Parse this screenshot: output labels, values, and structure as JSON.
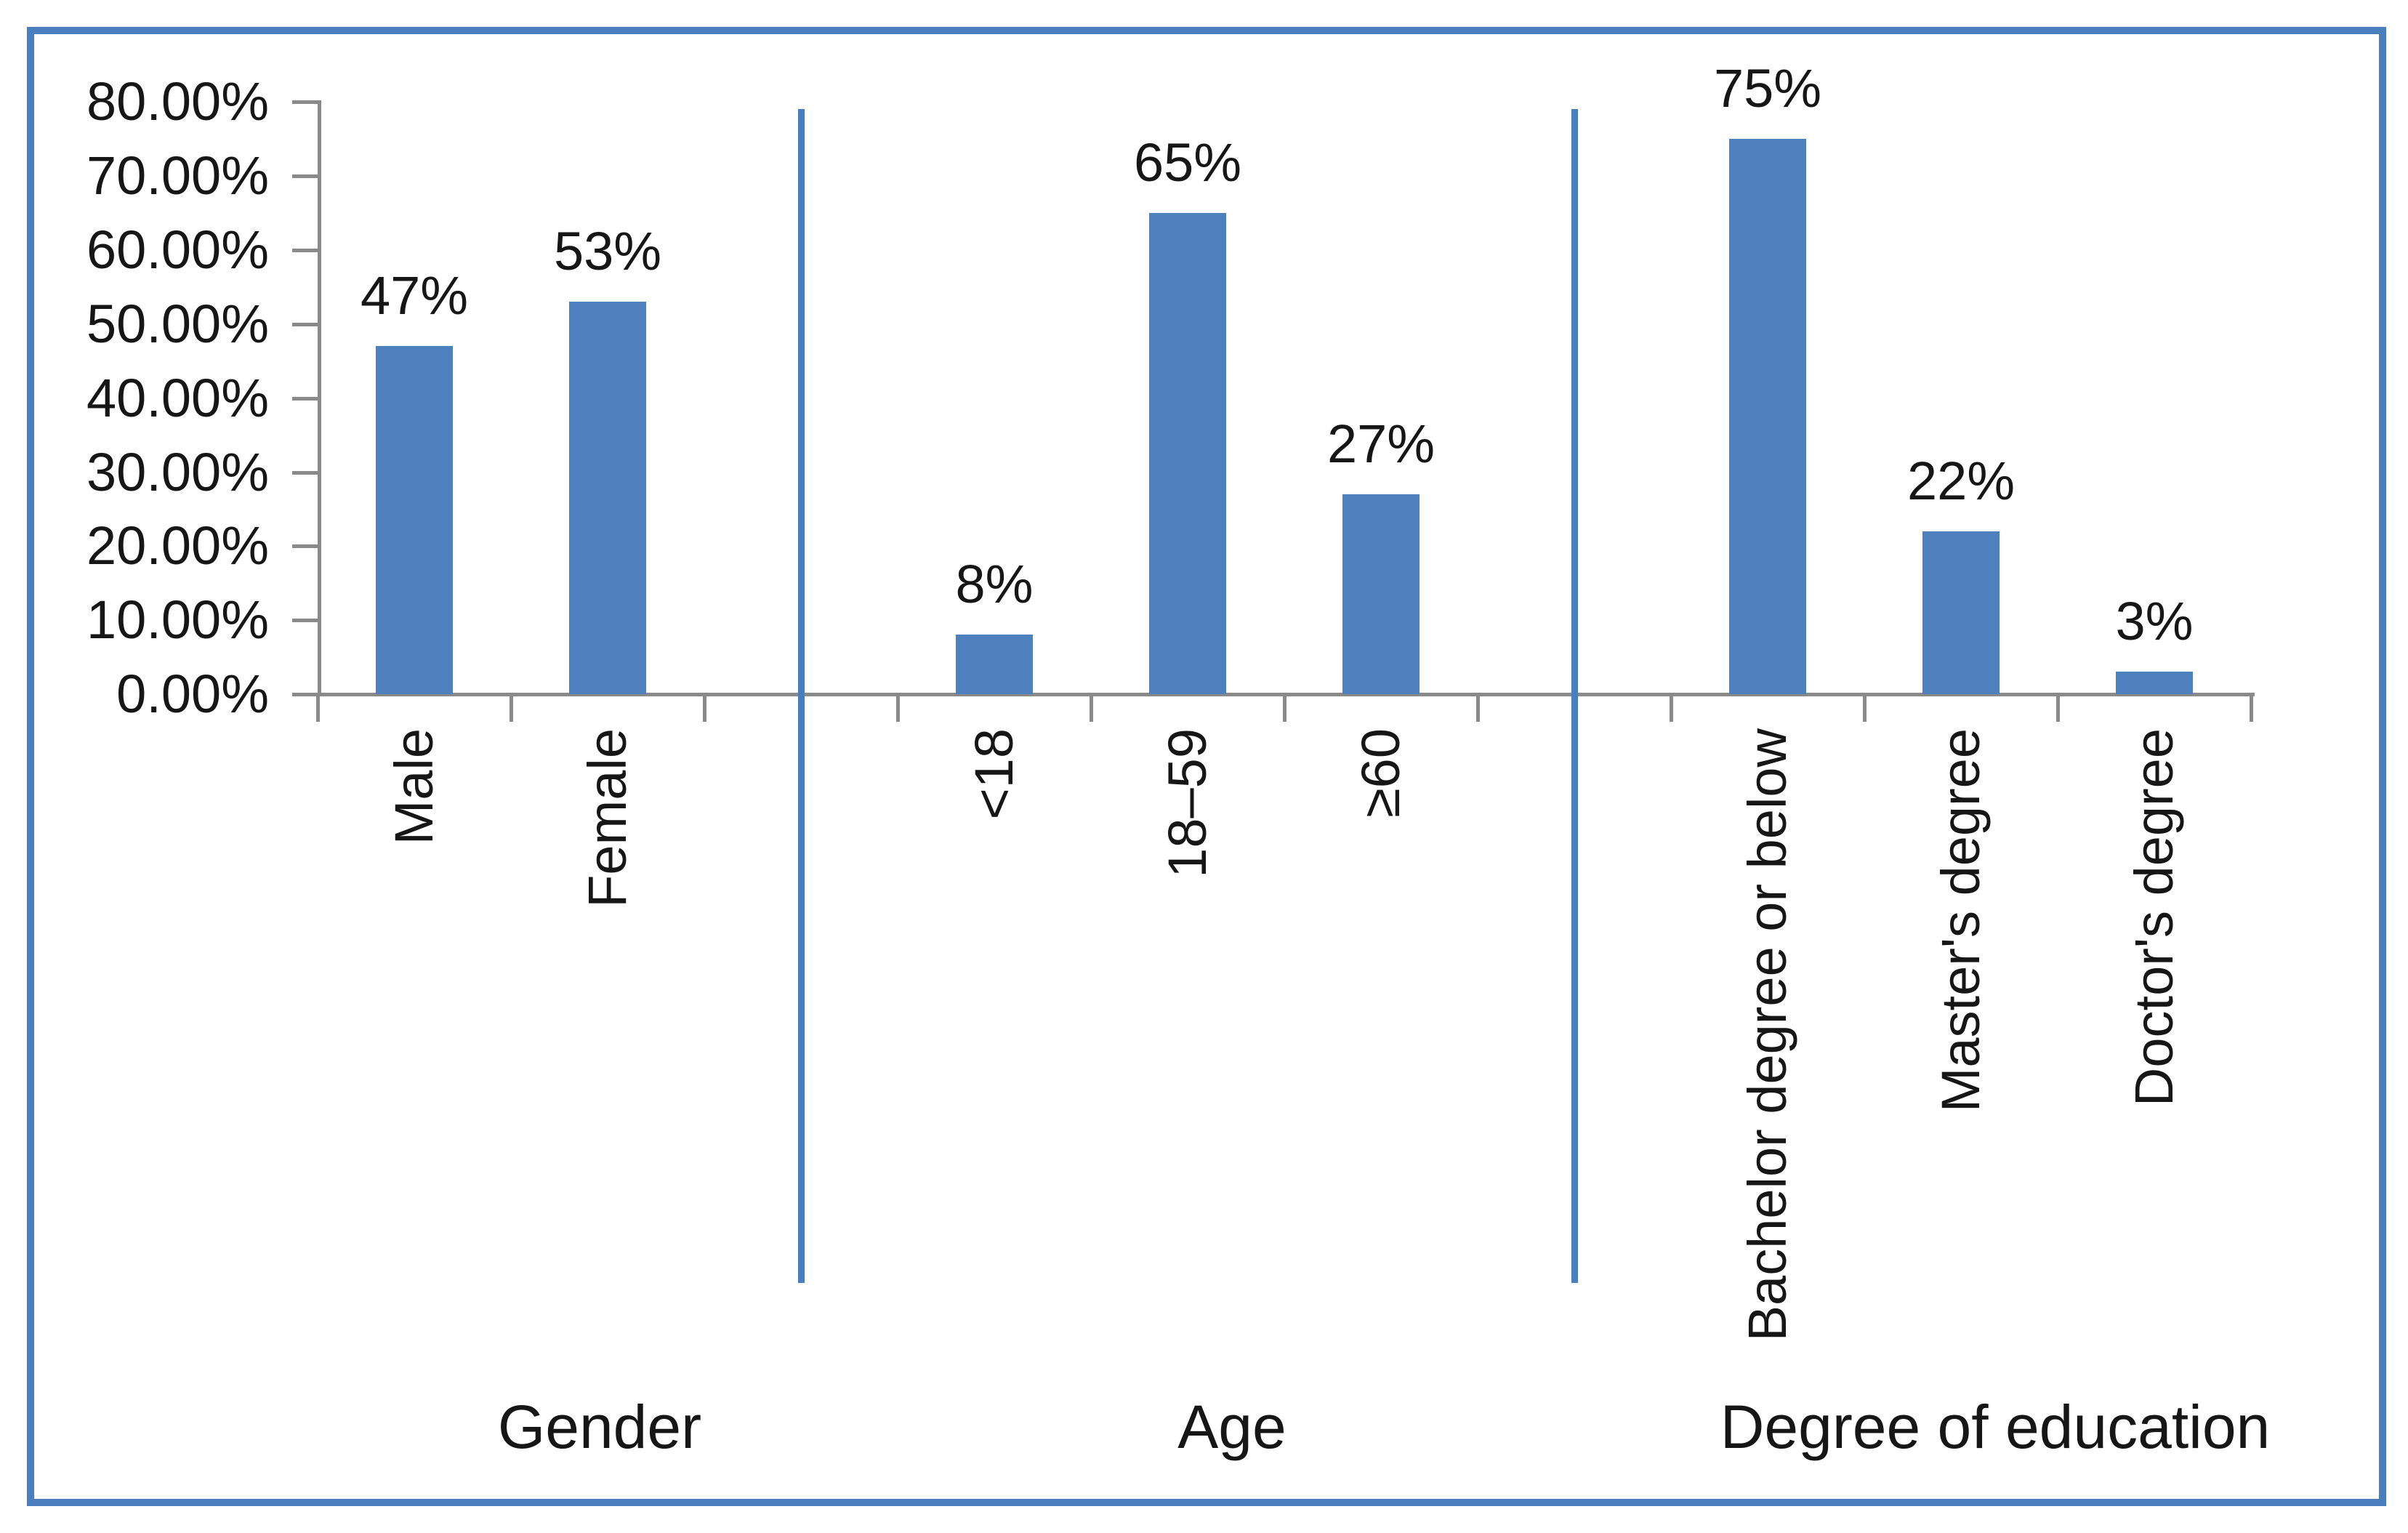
{
  "chart_data": {
    "type": "bar",
    "title": "",
    "xlabel": "",
    "ylabel": "",
    "grid": false,
    "legend": false,
    "y_axis": {
      "min": 0,
      "max": 80,
      "step": 10,
      "tick_labels": [
        "80.00%",
        "70.00%",
        "60.00%",
        "50.00%",
        "40.00%",
        "30.00%",
        "20.00%",
        "10.00%",
        "0.00%"
      ]
    },
    "groups": [
      {
        "label": "Gender",
        "categories": [
          "Male",
          "Female"
        ],
        "values": [
          47,
          53
        ],
        "value_labels": [
          "47%",
          "53%"
        ]
      },
      {
        "label": "Age",
        "categories": [
          "<18",
          "18–59",
          "≥60"
        ],
        "values": [
          8,
          65,
          27
        ],
        "value_labels": [
          "8%",
          "65%",
          "27%"
        ]
      },
      {
        "label": "Degree of education",
        "categories": [
          "Bachelor degree or below",
          "Master's degree",
          "Doctor's degree"
        ],
        "values": [
          75,
          22,
          3
        ],
        "value_labels": [
          "75%",
          "22%",
          "3%"
        ]
      }
    ],
    "colors": {
      "bar": "#4d80bd",
      "frame_border": "#4a7ebd",
      "separator": "#4a7ebd",
      "axis": "#8a8a8a",
      "text": "#161616"
    }
  }
}
